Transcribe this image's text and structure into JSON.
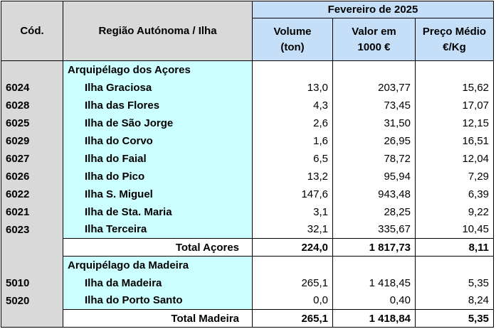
{
  "header": {
    "code": "Cód.",
    "region": "Região Autónoma / Ilha",
    "period": "Fevereiro de 2025",
    "volume": "Volume",
    "volume_unit": "(ton)",
    "value": "Valor em",
    "value_unit": "1000 €",
    "price": "Preço Médio",
    "price_unit": "€/Kg"
  },
  "acores": {
    "title": "Arquipélago dos Açores",
    "rows": [
      {
        "code": "6024",
        "name": "Ilha Graciosa",
        "volume": "13,0",
        "value": "203,77",
        "price": "15,62"
      },
      {
        "code": "6028",
        "name": "Ilha das Flores",
        "volume": "4,3",
        "value": "73,45",
        "price": "17,07"
      },
      {
        "code": "6025",
        "name": "Ilha de São Jorge",
        "volume": "2,6",
        "value": "31,50",
        "price": "12,15"
      },
      {
        "code": "6029",
        "name": "Ilha do Corvo",
        "volume": "1,6",
        "value": "26,95",
        "price": "16,51"
      },
      {
        "code": "6027",
        "name": "Ilha do Faial",
        "volume": "6,5",
        "value": "78,72",
        "price": "12,04"
      },
      {
        "code": "6026",
        "name": "Ilha do Pico",
        "volume": "13,2",
        "value": "95,94",
        "price": "7,29"
      },
      {
        "code": "6022",
        "name": "Ilha S. Miguel",
        "volume": "147,6",
        "value": "943,48",
        "price": "6,39"
      },
      {
        "code": "6021",
        "name": "Ilha de Sta. Maria",
        "volume": "3,1",
        "value": "28,25",
        "price": "9,22"
      },
      {
        "code": "6023",
        "name": "Ilha Terceira",
        "volume": "32,1",
        "value": "335,67",
        "price": "10,45"
      }
    ],
    "total": {
      "label": "Total Açores",
      "volume": "224,0",
      "value": "1 817,73",
      "price": "8,11"
    }
  },
  "madeira": {
    "title": "Arquipélago da Madeira",
    "rows": [
      {
        "code": "5010",
        "name": "Ilha da Madeira",
        "volume": "265,1",
        "value": "1 418,45",
        "price": "5,35"
      },
      {
        "code": "5020",
        "name": "Ilha do Porto Santo",
        "volume": "0,0",
        "value": "0,40",
        "price": "8,24"
      }
    ],
    "total": {
      "label": "Total Madeira",
      "volume": "265,1",
      "value": "1 418,84",
      "price": "5,35"
    }
  }
}
